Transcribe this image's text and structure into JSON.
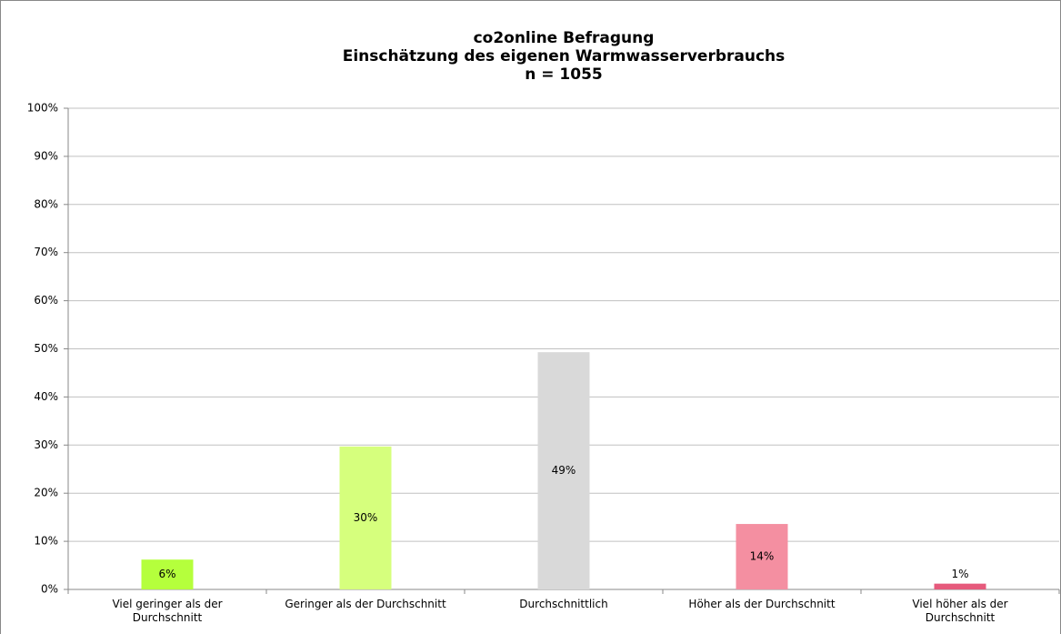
{
  "chart_data": {
    "type": "bar",
    "title": [
      "co2online Befragung",
      "Einschätzung des eigenen Warmwasserverbrauchs",
      "n = 1055"
    ],
    "categories": [
      "Viel geringer als der Durchschnitt",
      "Geringer als der Durchschnitt",
      "Durchschnittlich",
      "Höher als der Durchschnitt",
      "Viel höher als der Durchschnitt"
    ],
    "values": [
      6.2,
      29.7,
      49.3,
      13.6,
      1.2
    ],
    "value_labels": [
      "6%",
      "30%",
      "49%",
      "14%",
      "1%"
    ],
    "colors": [
      "#b5ff3c",
      "#d6ff7d",
      "#d9d9d9",
      "#f48fa1",
      "#e65a7c"
    ],
    "ylim": [
      0,
      100
    ],
    "yticks": [
      {
        "value": 0,
        "label": "0%"
      },
      {
        "value": 10,
        "label": "10%"
      },
      {
        "value": 20,
        "label": "20%"
      },
      {
        "value": 30,
        "label": "30%"
      },
      {
        "value": 40,
        "label": "40%"
      },
      {
        "value": 50,
        "label": "50%"
      },
      {
        "value": 60,
        "label": "60%"
      },
      {
        "value": 70,
        "label": "70%"
      },
      {
        "value": 80,
        "label": "80%"
      },
      {
        "value": 90,
        "label": "90%"
      },
      {
        "value": 100,
        "label": "100%"
      }
    ],
    "grid": true
  }
}
